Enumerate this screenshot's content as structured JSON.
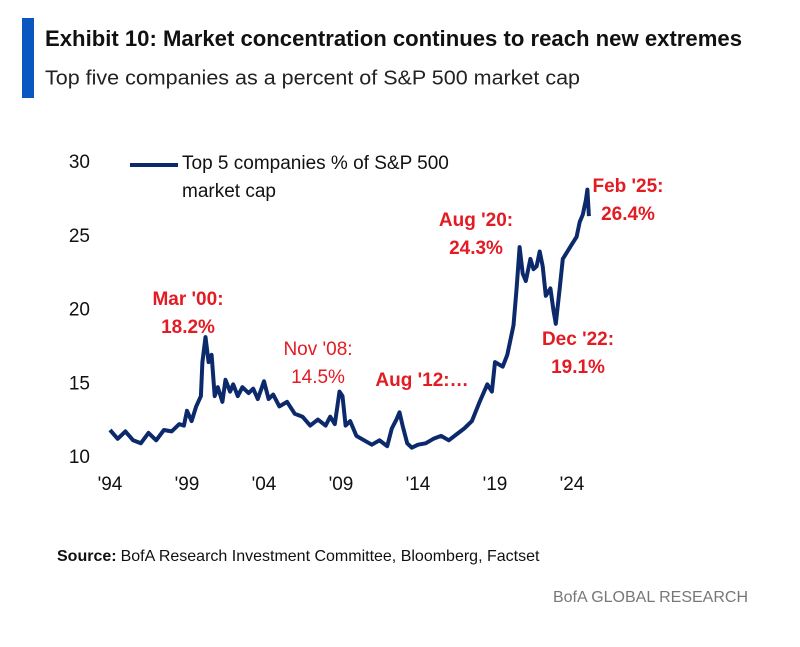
{
  "header": {
    "title": "Exhibit 10: Market concentration continues to reach new extremes",
    "subtitle": "Top five companies as a percent of S&P 500 market cap"
  },
  "chart_data": {
    "type": "line",
    "x": [
      1994.0,
      1994.5,
      1995.0,
      1995.5,
      1996.0,
      1996.5,
      1997.0,
      1997.5,
      1998.0,
      1998.5,
      1998.8,
      1999.0,
      1999.3,
      1999.6,
      1999.9,
      2000.0,
      2000.2,
      2000.4,
      2000.6,
      2000.8,
      2001.0,
      2001.3,
      2001.5,
      2001.8,
      2002.0,
      2002.3,
      2002.6,
      2003.0,
      2003.3,
      2003.6,
      2004.0,
      2004.3,
      2004.6,
      2005.0,
      2005.5,
      2006.0,
      2006.5,
      2007.0,
      2007.5,
      2008.0,
      2008.3,
      2008.6,
      2008.9,
      2009.1,
      2009.3,
      2009.6,
      2010.0,
      2010.5,
      2011.0,
      2011.5,
      2012.0,
      2012.3,
      2012.6,
      2012.8,
      2013.0,
      2013.3,
      2013.6,
      2014.0,
      2014.5,
      2015.0,
      2015.5,
      2016.0,
      2016.5,
      2017.0,
      2017.5,
      2018.0,
      2018.5,
      2018.8,
      2019.0,
      2019.5,
      2019.8,
      2020.2,
      2020.4,
      2020.6,
      2020.8,
      2021.0,
      2021.3,
      2021.5,
      2021.7,
      2021.9,
      2022.1,
      2022.3,
      2022.6,
      2022.8,
      2022.95,
      2023.2,
      2023.4,
      2023.7,
      2024.0,
      2024.3,
      2024.5,
      2024.7,
      2024.9,
      2025.0,
      2025.1
    ],
    "series": [
      {
        "name": "Top 5 companies % of S&P 500 market cap",
        "color": "#0c2a6b",
        "values": [
          11.9,
          11.3,
          11.8,
          11.2,
          11.0,
          11.7,
          11.2,
          11.9,
          11.8,
          12.3,
          12.2,
          13.2,
          12.5,
          13.5,
          14.2,
          16.5,
          18.2,
          16.5,
          17.0,
          14.2,
          14.8,
          13.8,
          15.3,
          14.5,
          15.0,
          14.2,
          14.8,
          14.4,
          14.7,
          14.0,
          15.2,
          14.0,
          14.3,
          13.5,
          13.8,
          13.0,
          12.8,
          12.2,
          12.6,
          12.2,
          12.8,
          12.3,
          14.5,
          14.2,
          12.2,
          12.5,
          11.5,
          11.2,
          10.9,
          11.2,
          10.8,
          12.0,
          12.6,
          13.1,
          12.2,
          11.0,
          10.7,
          10.9,
          11.0,
          11.3,
          11.5,
          11.2,
          11.6,
          12.0,
          12.5,
          13.8,
          15.0,
          14.5,
          16.5,
          16.2,
          17.0,
          19.0,
          21.5,
          24.3,
          22.5,
          22.0,
          23.5,
          22.8,
          23.0,
          24.0,
          23.0,
          21.0,
          21.5,
          20.0,
          19.1,
          21.5,
          23.5,
          24.0,
          24.5,
          25.0,
          26.0,
          26.5,
          27.5,
          28.2,
          26.4
        ]
      }
    ],
    "xlim": [
      1994,
      2025.3
    ],
    "xticks": [
      {
        "value": 1994,
        "label": "'94"
      },
      {
        "value": 1999,
        "label": "'99"
      },
      {
        "value": 2004,
        "label": "'04"
      },
      {
        "value": 2009,
        "label": "'09"
      },
      {
        "value": 2014,
        "label": "'14"
      },
      {
        "value": 2019,
        "label": "'19"
      },
      {
        "value": 2024,
        "label": "'24"
      }
    ],
    "ylim": [
      10,
      30
    ],
    "yticks": [
      10,
      15,
      20,
      25,
      30
    ],
    "grid": false,
    "annotations": [
      {
        "lines": [
          "Mar '00:",
          "18.2%"
        ],
        "color": "#e31b23",
        "bold": true
      },
      {
        "lines": [
          "Nov '08:",
          "14.5%"
        ],
        "color": "#e31b23",
        "bold": false
      },
      {
        "lines": [
          "Aug '12:…"
        ],
        "color": "#e31b23",
        "bold": true
      },
      {
        "lines": [
          "Aug '20:",
          "24.3%"
        ],
        "color": "#e31b23",
        "bold": true
      },
      {
        "lines": [
          "Dec '22:",
          "19.1%"
        ],
        "color": "#e31b23",
        "bold": true
      },
      {
        "lines": [
          "Feb '25:",
          "26.4%"
        ],
        "color": "#e31b23",
        "bold": true
      }
    ]
  },
  "footer": {
    "source_label": "Source:",
    "source_text": "BofA Research Investment Committee, Bloomberg, Factset",
    "brand": "BofA GLOBAL RESEARCH"
  }
}
